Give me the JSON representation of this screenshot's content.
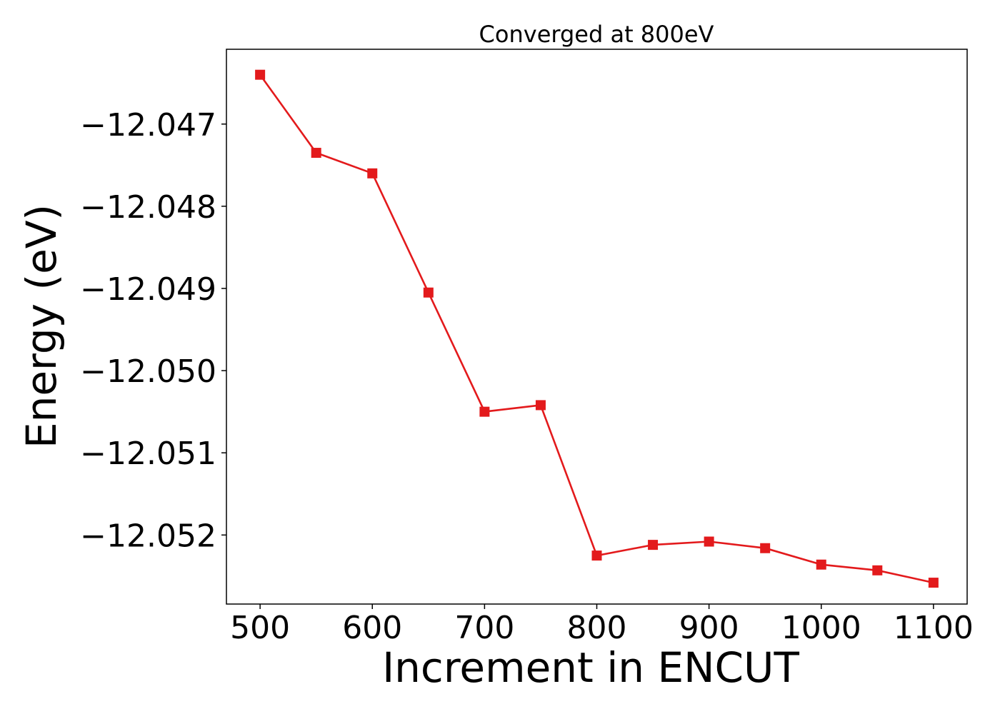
{
  "chart_data": {
    "type": "line",
    "title": "Converged at 800eV",
    "xlabel": "Increment in ENCUT",
    "ylabel": "Energy (eV)",
    "x": [
      500,
      550,
      600,
      650,
      700,
      750,
      800,
      850,
      900,
      950,
      1000,
      1050,
      1100
    ],
    "series": [
      {
        "values": [
          -12.0464,
          -12.04735,
          -12.0476,
          -12.04905,
          -12.0505,
          -12.05042,
          -12.05225,
          -12.05212,
          -12.05208,
          -12.05216,
          -12.05236,
          -12.05243,
          -12.05258
        ],
        "color": "#e31a1c",
        "marker": "square"
      }
    ],
    "xlim": [
      470,
      1130
    ],
    "ylim": [
      -12.05284,
      -12.04609
    ],
    "xticks": [
      500,
      600,
      700,
      800,
      900,
      1000,
      1100
    ],
    "xtick_labels": [
      "500",
      "600",
      "700",
      "800",
      "900",
      "1000",
      "1100"
    ],
    "yticks": [
      -12.047,
      -12.048,
      -12.049,
      -12.05,
      -12.051,
      -12.052
    ],
    "ytick_labels": [
      "−12.047",
      "−12.048",
      "−12.049",
      "−12.050",
      "−12.051",
      "−12.052"
    ],
    "grid": false,
    "legend": false
  }
}
